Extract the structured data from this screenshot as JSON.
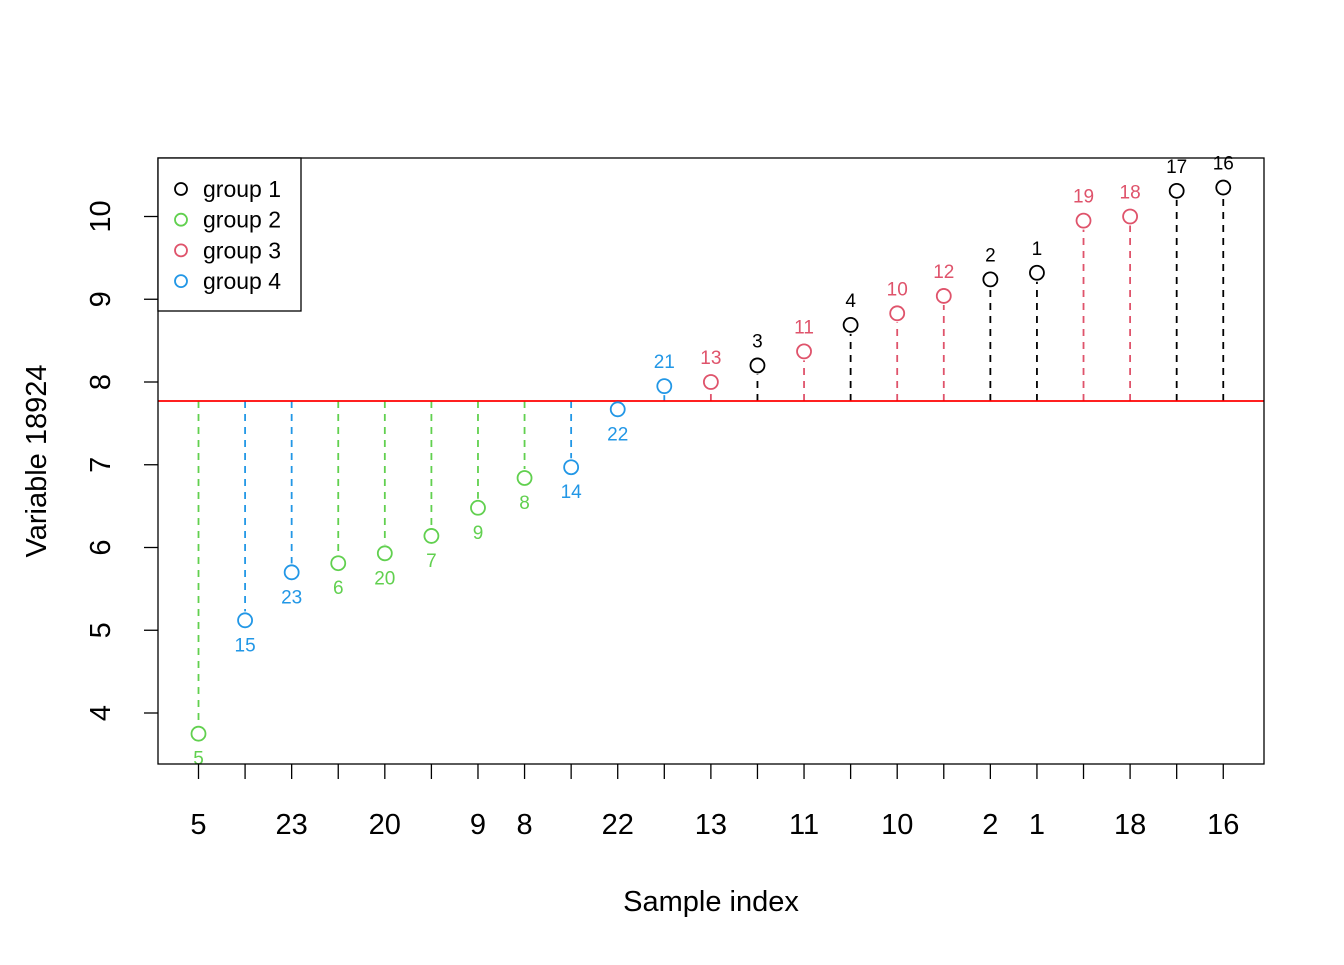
{
  "chart_data": {
    "type": "scatter",
    "xlabel": "Sample index",
    "ylabel": "Variable 18924",
    "ylim": [
      3.4,
      10.7
    ],
    "yticks": [
      4,
      5,
      6,
      7,
      8,
      9,
      10
    ],
    "reference_line": {
      "y": 7.77,
      "color": "#ff0000"
    },
    "x_tick_labels": [
      "5",
      "",
      "23",
      "",
      "20",
      "",
      "9",
      "8",
      "",
      "22",
      "",
      "13",
      "",
      "11",
      "",
      "10",
      "",
      "2",
      "1",
      "",
      "18",
      "",
      "16"
    ],
    "legend": {
      "position": "top-left",
      "entries": [
        {
          "label": "group 1",
          "color": "#000000"
        },
        {
          "label": "group 2",
          "color": "#61d04f"
        },
        {
          "label": "group 3",
          "color": "#df536b"
        },
        {
          "label": "group 4",
          "color": "#2297e6"
        }
      ]
    },
    "points": [
      {
        "label": "5",
        "group": 2,
        "value": 3.75
      },
      {
        "label": "15",
        "group": 4,
        "value": 5.12
      },
      {
        "label": "23",
        "group": 4,
        "value": 5.7
      },
      {
        "label": "6",
        "group": 2,
        "value": 5.81
      },
      {
        "label": "20",
        "group": 2,
        "value": 5.93
      },
      {
        "label": "7",
        "group": 2,
        "value": 6.14
      },
      {
        "label": "9",
        "group": 2,
        "value": 6.48
      },
      {
        "label": "8",
        "group": 2,
        "value": 6.84
      },
      {
        "label": "14",
        "group": 4,
        "value": 6.97
      },
      {
        "label": "22",
        "group": 4,
        "value": 7.67
      },
      {
        "label": "21",
        "group": 4,
        "value": 7.95
      },
      {
        "label": "13",
        "group": 3,
        "value": 8.0
      },
      {
        "label": "3",
        "group": 1,
        "value": 8.2
      },
      {
        "label": "11",
        "group": 3,
        "value": 8.37
      },
      {
        "label": "4",
        "group": 1,
        "value": 8.69
      },
      {
        "label": "10",
        "group": 3,
        "value": 8.83
      },
      {
        "label": "12",
        "group": 3,
        "value": 9.04
      },
      {
        "label": "2",
        "group": 1,
        "value": 9.24
      },
      {
        "label": "1",
        "group": 1,
        "value": 9.32
      },
      {
        "label": "19",
        "group": 3,
        "value": 9.95
      },
      {
        "label": "18",
        "group": 3,
        "value": 10.0
      },
      {
        "label": "17",
        "group": 1,
        "value": 10.31
      },
      {
        "label": "16",
        "group": 1,
        "value": 10.35
      }
    ]
  }
}
